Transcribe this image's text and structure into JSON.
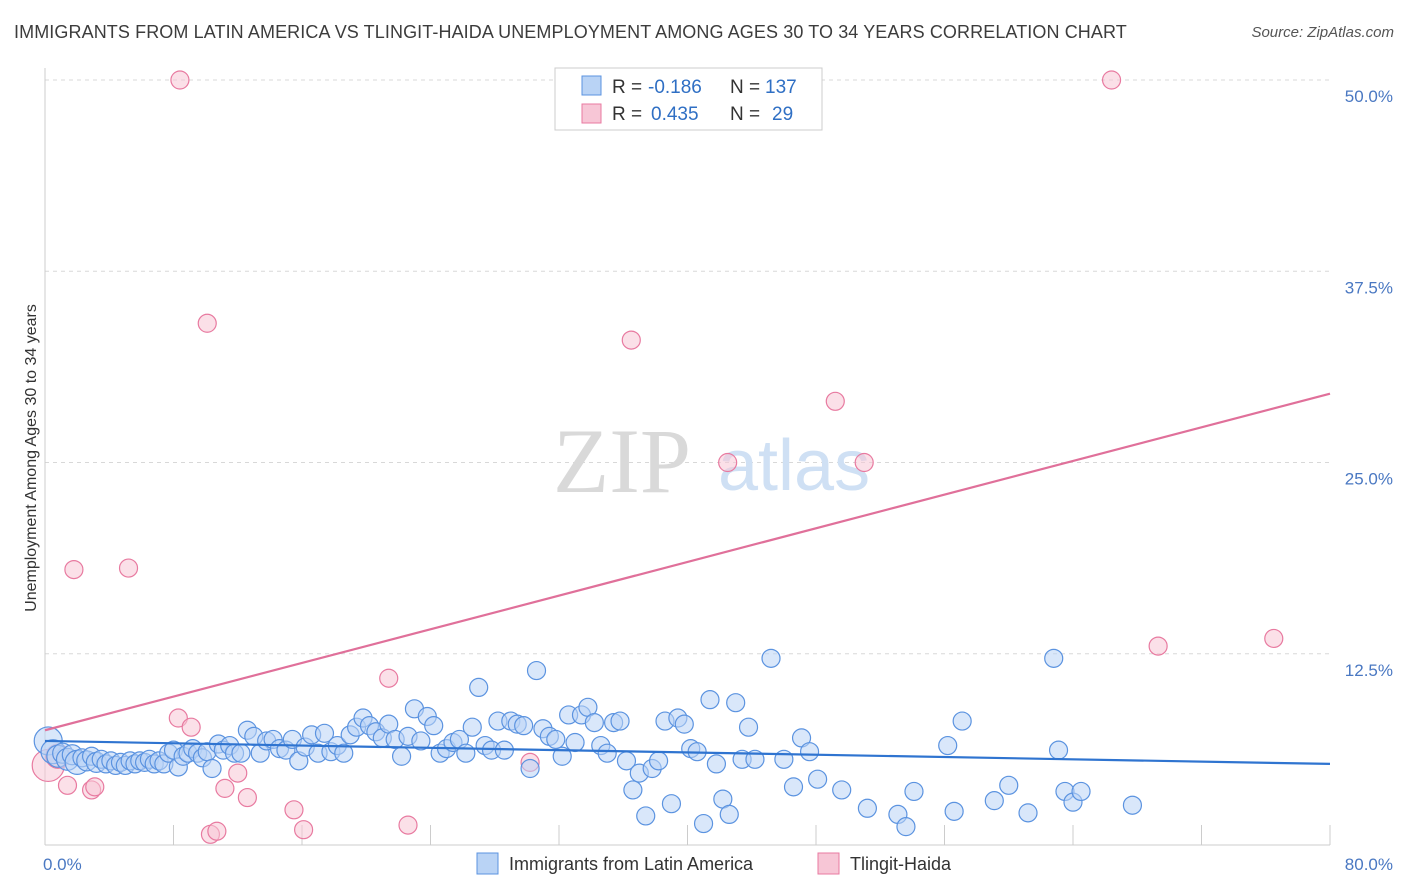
{
  "title": "IMMIGRANTS FROM LATIN AMERICA VS TLINGIT-HAIDA UNEMPLOYMENT AMONG AGES 30 TO 34 YEARS CORRELATION CHART",
  "source": "Source: ZipAtlas.com",
  "watermark": {
    "zip": "ZIP",
    "atlas": "atlas"
  },
  "colors": {
    "blue": "#5b93e0",
    "blue_fill": "#b9d3f5",
    "blue_line": "#2f74d0",
    "pink": "#e87aa0",
    "pink_fill": "#f7c6d6",
    "pink_line": "#e0709a",
    "tick_text": "#4a78c2",
    "grid": "#d8d8d8"
  },
  "legend_top": {
    "rows": [
      {
        "r_label": "R =",
        "r_value": "-0.186",
        "n_label": "N =",
        "n_value": "137",
        "color": "blue"
      },
      {
        "r_label": "R =",
        "r_value": "0.435",
        "n_label": "N =",
        "n_value": "29",
        "color": "pink"
      }
    ]
  },
  "legend_bottom": [
    {
      "label": "Immigrants from Latin America",
      "color": "blue"
    },
    {
      "label": "Tlingit-Haida",
      "color": "pink"
    }
  ],
  "chart_data": {
    "type": "scatter",
    "title": "IMMIGRANTS FROM LATIN AMERICA VS TLINGIT-HAIDA UNEMPLOYMENT AMONG AGES 30 TO 34 YEARS CORRELATION CHART",
    "xlabel": "",
    "ylabel": "Unemployment Among Ages 30 to 34 years",
    "xlim": [
      0,
      80
    ],
    "ylim": [
      0,
      50
    ],
    "x_tick_labels": [
      "0.0%",
      "80.0%"
    ],
    "y_ticks": [
      12.5,
      25.0,
      37.5,
      50.0
    ],
    "y_tick_labels": [
      "12.5%",
      "25.0%",
      "37.5%",
      "50.0%"
    ],
    "grid": true,
    "legend_placement": "top-center",
    "series": [
      {
        "name": "Immigrants from Latin America",
        "color": "blue",
        "trend": {
          "x": [
            0,
            80
          ],
          "y": [
            6.8,
            5.3
          ]
        },
        "points": [
          [
            0.2,
            6.8,
            14
          ],
          [
            0.5,
            6.1,
            12
          ],
          [
            0.8,
            5.8,
            11
          ],
          [
            1.1,
            6.0,
            10
          ],
          [
            1.4,
            5.6,
            11
          ],
          [
            1.7,
            5.9,
            10
          ],
          [
            2.0,
            5.4,
            12
          ],
          [
            2.3,
            5.7,
            9
          ],
          [
            2.6,
            5.5,
            10
          ],
          [
            2.9,
            5.8,
            9
          ],
          [
            3.2,
            5.4,
            10
          ],
          [
            3.5,
            5.6,
            9
          ],
          [
            3.8,
            5.3,
            9
          ],
          [
            4.1,
            5.5,
            9
          ],
          [
            4.4,
            5.2,
            9
          ],
          [
            4.7,
            5.4,
            9
          ],
          [
            5.0,
            5.2,
            9
          ],
          [
            5.3,
            5.5,
            9
          ],
          [
            5.6,
            5.3,
            9
          ],
          [
            5.9,
            5.5,
            9
          ],
          [
            6.2,
            5.4,
            9
          ],
          [
            6.5,
            5.6,
            9
          ],
          [
            6.8,
            5.3,
            9
          ],
          [
            7.1,
            5.5,
            9
          ],
          [
            7.4,
            5.3,
            9
          ],
          [
            7.7,
            6.0,
            9
          ],
          [
            8.0,
            6.2,
            9
          ],
          [
            8.3,
            5.1,
            9
          ],
          [
            8.6,
            5.8,
            9
          ],
          [
            8.9,
            6.0,
            9
          ],
          [
            9.2,
            6.3,
            9
          ],
          [
            9.5,
            6.0,
            9
          ],
          [
            9.8,
            5.7,
            9
          ],
          [
            10.1,
            6.1,
            9
          ],
          [
            10.4,
            5.0,
            9
          ],
          [
            10.8,
            6.6,
            9
          ],
          [
            11.1,
            6.2,
            9
          ],
          [
            11.5,
            6.5,
            9
          ],
          [
            11.8,
            6.0,
            9
          ],
          [
            12.2,
            6.0,
            9
          ],
          [
            12.6,
            7.5,
            9
          ],
          [
            13.0,
            7.1,
            9
          ],
          [
            13.4,
            6.0,
            9
          ],
          [
            13.8,
            6.8,
            9
          ],
          [
            14.2,
            6.9,
            9
          ],
          [
            14.6,
            6.3,
            9
          ],
          [
            15.0,
            6.2,
            9
          ],
          [
            15.4,
            6.9,
            9
          ],
          [
            15.8,
            5.5,
            9
          ],
          [
            16.2,
            6.4,
            9
          ],
          [
            16.6,
            7.2,
            9
          ],
          [
            17.0,
            6.0,
            9
          ],
          [
            17.4,
            7.3,
            9
          ],
          [
            17.8,
            6.1,
            9
          ],
          [
            18.2,
            6.5,
            9
          ],
          [
            18.6,
            6.0,
            9
          ],
          [
            19.0,
            7.2,
            9
          ],
          [
            19.4,
            7.7,
            9
          ],
          [
            19.8,
            8.3,
            9
          ],
          [
            20.2,
            7.8,
            9
          ],
          [
            20.6,
            7.4,
            9
          ],
          [
            21.0,
            7.0,
            9
          ],
          [
            21.4,
            7.9,
            9
          ],
          [
            21.8,
            6.9,
            9
          ],
          [
            22.2,
            5.8,
            9
          ],
          [
            22.6,
            7.1,
            9
          ],
          [
            23.0,
            8.9,
            9
          ],
          [
            23.4,
            6.8,
            9
          ],
          [
            23.8,
            8.4,
            9
          ],
          [
            24.2,
            7.8,
            9
          ],
          [
            24.6,
            6.0,
            9
          ],
          [
            25.0,
            6.3,
            9
          ],
          [
            25.4,
            6.7,
            9
          ],
          [
            25.8,
            6.9,
            9
          ],
          [
            26.2,
            6.0,
            9
          ],
          [
            26.6,
            7.7,
            9
          ],
          [
            27.0,
            10.3,
            9
          ],
          [
            27.4,
            6.5,
            9
          ],
          [
            27.8,
            6.2,
            9
          ],
          [
            28.2,
            8.1,
            9
          ],
          [
            28.6,
            6.2,
            9
          ],
          [
            29.0,
            8.1,
            9
          ],
          [
            29.4,
            7.9,
            9
          ],
          [
            29.8,
            7.8,
            9
          ],
          [
            30.2,
            5.0,
            9
          ],
          [
            30.6,
            11.4,
            9
          ],
          [
            31.0,
            7.6,
            9
          ],
          [
            31.4,
            7.1,
            9
          ],
          [
            31.8,
            6.9,
            9
          ],
          [
            32.2,
            5.8,
            9
          ],
          [
            32.6,
            8.5,
            9
          ],
          [
            33.0,
            6.7,
            9
          ],
          [
            33.4,
            8.5,
            9
          ],
          [
            33.8,
            9.0,
            9
          ],
          [
            34.2,
            8.0,
            9
          ],
          [
            34.6,
            6.5,
            9
          ],
          [
            35.0,
            6.0,
            9
          ],
          [
            35.4,
            8.0,
            9
          ],
          [
            35.8,
            8.1,
            9
          ],
          [
            36.2,
            5.5,
            9
          ],
          [
            36.6,
            3.6,
            9
          ],
          [
            37.0,
            4.7,
            9
          ],
          [
            37.4,
            1.9,
            9
          ],
          [
            37.8,
            5.0,
            9
          ],
          [
            38.2,
            5.5,
            9
          ],
          [
            38.6,
            8.1,
            9
          ],
          [
            39.0,
            2.7,
            9
          ],
          [
            39.4,
            8.3,
            9
          ],
          [
            39.8,
            7.9,
            9
          ],
          [
            40.2,
            6.3,
            9
          ],
          [
            40.6,
            6.1,
            9
          ],
          [
            41.0,
            1.4,
            9
          ],
          [
            41.4,
            9.5,
            9
          ],
          [
            41.8,
            5.3,
            9
          ],
          [
            42.2,
            3.0,
            9
          ],
          [
            42.6,
            2.0,
            9
          ],
          [
            43.0,
            9.3,
            9
          ],
          [
            43.4,
            5.6,
            9
          ],
          [
            43.8,
            7.7,
            9
          ],
          [
            44.2,
            5.6,
            9
          ],
          [
            45.2,
            12.2,
            9
          ],
          [
            46.0,
            5.6,
            9
          ],
          [
            46.6,
            3.8,
            9
          ],
          [
            47.1,
            7.0,
            9
          ],
          [
            47.6,
            6.1,
            9
          ],
          [
            48.1,
            4.3,
            9
          ],
          [
            49.6,
            3.6,
            9
          ],
          [
            51.2,
            2.4,
            9
          ],
          [
            53.1,
            2.0,
            9
          ],
          [
            53.6,
            1.2,
            9
          ],
          [
            54.1,
            3.5,
            9
          ],
          [
            56.2,
            6.5,
            9
          ],
          [
            56.6,
            2.2,
            9
          ],
          [
            57.1,
            8.1,
            9
          ],
          [
            59.1,
            2.9,
            9
          ],
          [
            60.0,
            3.9,
            9
          ],
          [
            61.2,
            2.1,
            9
          ],
          [
            62.8,
            12.2,
            9
          ],
          [
            63.1,
            6.2,
            9
          ],
          [
            63.5,
            3.5,
            9
          ],
          [
            64.0,
            2.8,
            9
          ],
          [
            64.5,
            3.5,
            9
          ],
          [
            67.7,
            2.6,
            9
          ]
        ]
      },
      {
        "name": "Tlingit-Haida",
        "color": "pink",
        "trend": {
          "x": [
            0,
            80
          ],
          "y": [
            7.5,
            29.5
          ]
        },
        "points": [
          [
            0.2,
            5.2,
            16
          ],
          [
            0.8,
            5.8,
            12
          ],
          [
            1.4,
            3.9,
            9
          ],
          [
            1.8,
            18.0,
            9
          ],
          [
            2.9,
            3.6,
            9
          ],
          [
            3.1,
            3.8,
            9
          ],
          [
            5.2,
            18.1,
            9
          ],
          [
            8.3,
            8.3,
            9
          ],
          [
            8.4,
            50.0,
            9
          ],
          [
            9.1,
            7.7,
            9
          ],
          [
            10.1,
            34.1,
            9
          ],
          [
            10.3,
            0.7,
            9
          ],
          [
            10.7,
            0.9,
            9
          ],
          [
            11.2,
            3.7,
            9
          ],
          [
            12.0,
            4.7,
            9
          ],
          [
            12.6,
            3.1,
            9
          ],
          [
            15.5,
            2.3,
            9
          ],
          [
            16.1,
            1.0,
            9
          ],
          [
            21.4,
            10.9,
            9
          ],
          [
            22.6,
            1.3,
            9
          ],
          [
            30.2,
            5.4,
            9
          ],
          [
            36.5,
            33.0,
            9
          ],
          [
            42.5,
            25.0,
            9
          ],
          [
            49.2,
            29.0,
            9
          ],
          [
            51.0,
            25.0,
            9
          ],
          [
            66.4,
            50.0,
            9
          ],
          [
            69.3,
            13.0,
            9
          ],
          [
            76.5,
            13.5,
            9
          ]
        ]
      }
    ]
  }
}
